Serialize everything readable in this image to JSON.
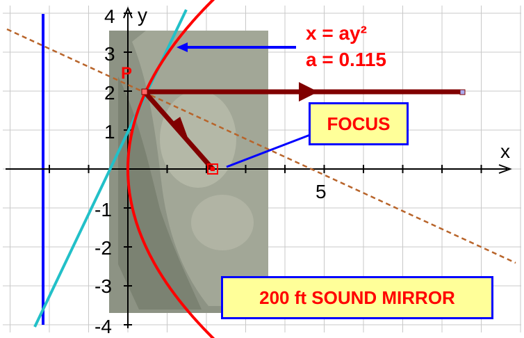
{
  "axes": {
    "x_label": "x",
    "y_label": "y",
    "x_tick_label": "5",
    "y_tick_labels": [
      "4",
      "3",
      "2",
      "1",
      "-1",
      "-2",
      "-3",
      "-4"
    ]
  },
  "equation": {
    "line1": "x = ay²",
    "line2": "a = 0.115"
  },
  "point_label": "P",
  "focus_label": "FOCUS",
  "mirror_label": "200 ft SOUND MIRROR",
  "colors": {
    "parabola": "#ff0000",
    "tangent": "#22c0c8",
    "directrix": "#0000ff",
    "ray": "#800000",
    "normal_line": "#b8642a",
    "label_box_fill": "#ffff99",
    "label_box_border": "#0000ff"
  }
}
